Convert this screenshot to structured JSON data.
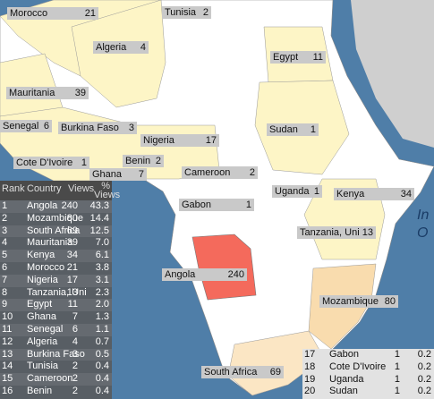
{
  "map_labels": [
    {
      "name": "Morocco",
      "views": "21"
    },
    {
      "name": "Tunisia",
      "views": "2"
    },
    {
      "name": "Algeria",
      "views": "4"
    },
    {
      "name": "Egypt",
      "views": "11"
    },
    {
      "name": "Mauritania",
      "views": "39"
    },
    {
      "name": "Senegal",
      "views": "6"
    },
    {
      "name": "Burkina Faso",
      "views": "3"
    },
    {
      "name": "Nigeria",
      "views": "17"
    },
    {
      "name": "Sudan",
      "views": "1"
    },
    {
      "name": "Cote D'Ivoire",
      "views": "1"
    },
    {
      "name": "Benin",
      "views": "2"
    },
    {
      "name": "Ghana",
      "views": "7"
    },
    {
      "name": "Cameroon",
      "views": "2"
    },
    {
      "name": "Uganda",
      "views": "1"
    },
    {
      "name": "Kenya",
      "views": "34"
    },
    {
      "name": "Gabon",
      "views": "1"
    },
    {
      "name": "Tanzania, Uni",
      "views": "13"
    },
    {
      "name": "Angola",
      "views": "240"
    },
    {
      "name": "Mozambique",
      "views": "80"
    },
    {
      "name": "South Africa",
      "views": "69"
    }
  ],
  "ocean_label": [
    "In",
    "O"
  ],
  "table": {
    "header": [
      "Rank",
      "Country",
      "Views",
      "% Views"
    ],
    "rows": [
      [
        "1",
        "Angola",
        "240",
        "43.3"
      ],
      [
        "2",
        "Mozambique",
        "80",
        "14.4"
      ],
      [
        "3",
        "South Africa",
        "69",
        "12.5"
      ],
      [
        "4",
        "Mauritania",
        "39",
        "7.0"
      ],
      [
        "5",
        "Kenya",
        "34",
        "6.1"
      ],
      [
        "6",
        "Morocco",
        "21",
        "3.8"
      ],
      [
        "7",
        "Nigeria",
        "17",
        "3.1"
      ],
      [
        "8",
        "Tanzania, Uni",
        "13",
        "2.3"
      ],
      [
        "9",
        "Egypt",
        "11",
        "2.0"
      ],
      [
        "10",
        "Ghana",
        "7",
        "1.3"
      ],
      [
        "11",
        "Senegal",
        "6",
        "1.1"
      ],
      [
        "12",
        "Algeria",
        "4",
        "0.7"
      ],
      [
        "13",
        "Burkina Faso",
        "3",
        "0.5"
      ],
      [
        "14",
        "Tunisia",
        "2",
        "0.4"
      ],
      [
        "15",
        "Cameroon",
        "2",
        "0.4"
      ],
      [
        "16",
        "Benin",
        "2",
        "0.4"
      ],
      [
        "17",
        "Gabon",
        "1",
        "0.2"
      ],
      [
        "18",
        "Cote D'Ivoire",
        "1",
        "0.2"
      ],
      [
        "19",
        "Uganda",
        "1",
        "0.2"
      ],
      [
        "20",
        "Sudan",
        "1",
        "0.2"
      ]
    ]
  }
}
